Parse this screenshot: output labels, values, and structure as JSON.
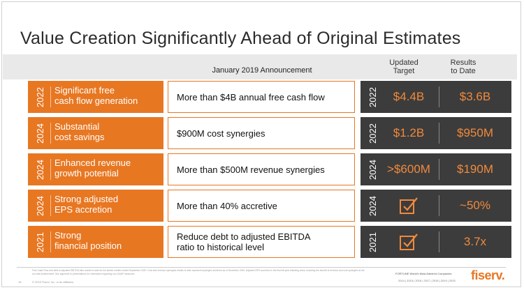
{
  "title": "Value Creation Significantly Ahead of Original Estimates",
  "headers": {
    "announcement": "January 2019 Announcement",
    "updated_line1": "Updated",
    "updated_line2": "Target",
    "results_line1": "Results",
    "results_line2": "to Date"
  },
  "rows": [
    {
      "year": "2022",
      "label_line1": "Significant free",
      "label_line2": "cash flow generation",
      "announcement": "More than $4B annual free cash flow",
      "target_year": "2022",
      "target": "$4.4B",
      "result": "$3.6B"
    },
    {
      "year": "2024",
      "label_line1": "Substantial",
      "label_line2": "cost savings",
      "announcement": "$900M cost synergies",
      "target_year": "2022",
      "target": "$1.2B",
      "result": "$950M"
    },
    {
      "year": "2024",
      "label_line1": "Enhanced revenue",
      "label_line2": "growth potential",
      "announcement": "More than $500M revenue synergies",
      "target_year": "2024",
      "target": ">$600M",
      "result": "$190M"
    },
    {
      "year": "2024",
      "label_line1": "Strong adjusted",
      "label_line2": "EPS accretion",
      "announcement": "More than 40% accretive",
      "target_year": "2024",
      "target_icon": "checkbox-check-icon",
      "result": "~50%"
    },
    {
      "year": "2021",
      "label_line1": "Strong",
      "label_line2": "financial position",
      "announcement_line1": "Reduce debt to adjusted EBITDA",
      "announcement_line2": "ratio to historical level",
      "target_year": "2021",
      "target_icon": "checkbox-check-icon",
      "result": "3.7x"
    }
  ],
  "footer": {
    "fine_print": "Free Cash Flow and debt to adjusted EBITDA ratio results to date for the twelve months ended September 2020. Cost and revenue synergies results to date represent synergies achieved as of November 2020. Adjusted EPS accretion in the first full year following close, including the benefit of revenue and cost synergies at full run-rate achievement. See appendix to presentations for information regarding non-GAAP measures.",
    "page": "18",
    "copyright": "© 2020 Fiserv, Inc. or its affiliates.",
    "fortune": "FORTUNE World's Most Admired Companies",
    "years": "2014 | 2015 | 2016 | 2017 | 2018 | 2019 | 2020",
    "logo": "fiserv."
  },
  "colors": {
    "orange": "#e87722",
    "dark": "#3c3c3c",
    "value": "#f08a3c"
  }
}
